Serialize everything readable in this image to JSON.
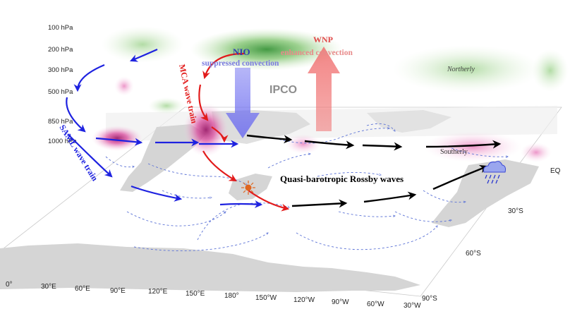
{
  "pressure_levels": [
    "100 hPa",
    "200 hPa",
    "300 hPa",
    "500 hPa",
    "850 hPa",
    "1000 hPa"
  ],
  "longitude_ticks": [
    "0°",
    "30°E",
    "60°E",
    "90°E",
    "120°E",
    "150°E",
    "180°",
    "150°W",
    "120°W",
    "90°W",
    "60°W",
    "30°W"
  ],
  "latitude_ticks": [
    "EQ",
    "30°S",
    "60°S",
    "90°S"
  ],
  "labels": {
    "nio": "NIO",
    "suppressed": "suppressed convection",
    "wnp": "WNP",
    "enhanced": "enhanced convection",
    "ipco": "IPCO",
    "mca": "MCA wave train",
    "saml": "SAML wave train",
    "quasi": "Quasi-barotropic Rossby waves",
    "northerly": "Northerly",
    "southerly": "Southerly"
  },
  "colors": {
    "green_shade": "#7cc26a",
    "pink_shade": "#d9489c",
    "saml_arrow": "#1e22e0",
    "mca_arrow": "#e21b1b",
    "rossby_arrow": "#000000",
    "suppressed_arrow": "#8f8ff2",
    "enhanced_arrow": "#f28c8c",
    "land": "#d7d7d7",
    "wind_vectors": "#5b72d6"
  },
  "icons": [
    "sun-heating-icon",
    "rain-cloud-icon"
  ]
}
